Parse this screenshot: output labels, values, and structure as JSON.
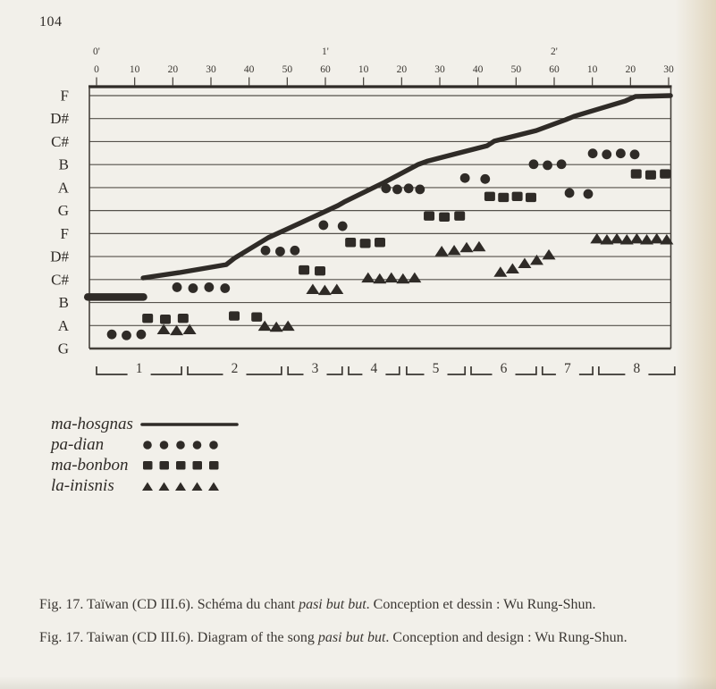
{
  "page": {
    "number": "104"
  },
  "colors": {
    "paper": "#f2f0ea",
    "ink": "#2f2b27",
    "grid": "#45403a",
    "caption_text": "#3b3733"
  },
  "chart_data": {
    "type": "scatter",
    "title": "Diagram of the song pasi but but",
    "x_axis": {
      "range_seconds": [
        0,
        150
      ],
      "minute_marks": [
        {
          "label": "0'",
          "t": 0
        },
        {
          "label": "1'",
          "t": 60
        },
        {
          "label": "2'",
          "t": 120
        }
      ],
      "ticks": [
        {
          "label": "0",
          "t": 0
        },
        {
          "label": "10",
          "t": 10
        },
        {
          "label": "20",
          "t": 20
        },
        {
          "label": "30",
          "t": 30
        },
        {
          "label": "40",
          "t": 40
        },
        {
          "label": "50",
          "t": 50
        },
        {
          "label": "60",
          "t": 60
        },
        {
          "label": "10",
          "t": 70
        },
        {
          "label": "20",
          "t": 80
        },
        {
          "label": "30",
          "t": 90
        },
        {
          "label": "40",
          "t": 100
        },
        {
          "label": "50",
          "t": 110
        },
        {
          "label": "60",
          "t": 120
        },
        {
          "label": "10",
          "t": 130
        },
        {
          "label": "20",
          "t": 140
        },
        {
          "label": "30",
          "t": 150
        }
      ]
    },
    "y_axis": {
      "pitch_lines": [
        "F",
        "D#",
        "C#",
        "B",
        "A",
        "G",
        "F",
        "D#",
        "C#",
        "B",
        "A",
        "G"
      ]
    },
    "series": [
      {
        "name": "ma-hosgnas",
        "type": "line",
        "segments": [
          {
            "stroke_width": 8.5,
            "points": [
              [
                -2.3,
                8.76
              ],
              [
                12.3,
                8.76
              ]
            ]
          },
          {
            "stroke_width": 5.4,
            "points": [
              [
                12.2,
                7.93
              ],
              [
                21.6,
                7.7
              ],
              [
                34.0,
                7.35
              ],
              [
                36.1,
                7.08
              ],
              [
                45.0,
                6.18
              ],
              [
                53.2,
                5.56
              ],
              [
                63.3,
                4.78
              ],
              [
                64.9,
                4.63
              ],
              [
                75.5,
                3.77
              ],
              [
                84.4,
                2.99
              ],
              [
                86.9,
                2.84
              ],
              [
                102.4,
                2.18
              ],
              [
                104.3,
                1.98
              ],
              [
                115.3,
                1.52
              ],
              [
                123.0,
                1.05
              ],
              [
                125.4,
                0.89
              ],
              [
                138.7,
                0.23
              ],
              [
                141.3,
                0.04
              ],
              [
                150.5,
                0.0
              ]
            ]
          }
        ]
      },
      {
        "name": "pa-dian",
        "type": "circle",
        "groups": [
          {
            "t_start": 4.0,
            "t_end": 11.7,
            "count": 3,
            "pitch": 10.4
          },
          {
            "t_start": 21.1,
            "t_end": 33.7,
            "count": 4,
            "pitch": 8.35
          },
          {
            "t_start": 44.3,
            "t_end": 52.0,
            "count": 3,
            "pitch": 6.75
          },
          {
            "t_start": 59.5,
            "t_end": 64.5,
            "count": 2,
            "pitch": 5.65
          },
          {
            "t_start": 75.9,
            "t_end": 84.8,
            "count": 4,
            "pitch": 4.05
          },
          {
            "t_start": 96.6,
            "t_end": 101.9,
            "count": 2,
            "pitch": 3.6
          },
          {
            "t_start": 114.6,
            "t_end": 121.9,
            "count": 3,
            "pitch": 3.0
          },
          {
            "t_start": 124.0,
            "t_end": 128.9,
            "count": 2,
            "pitch": 4.25
          },
          {
            "t_start": 130.1,
            "t_end": 141.1,
            "count": 4,
            "pitch": 2.53
          }
        ]
      },
      {
        "name": "ma-bonbon",
        "type": "square",
        "groups": [
          {
            "t_start": 13.4,
            "t_end": 22.7,
            "count": 3,
            "pitch": 9.7
          },
          {
            "t_start": 36.1,
            "t_end": 42.0,
            "count": 2,
            "pitch": 9.6
          },
          {
            "t_start": 54.4,
            "t_end": 58.6,
            "count": 2,
            "pitch": 7.6
          },
          {
            "t_start": 66.6,
            "t_end": 74.3,
            "count": 3,
            "pitch": 6.4
          },
          {
            "t_start": 87.2,
            "t_end": 95.2,
            "count": 3,
            "pitch": 5.25
          },
          {
            "t_start": 103.1,
            "t_end": 113.9,
            "count": 4,
            "pitch": 4.4
          },
          {
            "t_start": 141.5,
            "t_end": 149.1,
            "count": 3,
            "pitch": 3.42
          }
        ]
      },
      {
        "name": "la-inisnis",
        "type": "triangle",
        "groups": [
          {
            "t_start": 17.6,
            "t_end": 24.4,
            "count": 3,
            "pitch": 10.2
          },
          {
            "t_start": 44.1,
            "t_end": 50.2,
            "count": 3,
            "pitch": 10.05
          },
          {
            "t_start": 56.7,
            "t_end": 63.0,
            "count": 3,
            "pitch": 8.45
          },
          {
            "t_start": 71.2,
            "t_end": 83.4,
            "count": 5,
            "pitch": 7.95
          },
          {
            "t_start": 90.5,
            "t_end": 100.3,
            "count": 4,
            "pitch": 6.8,
            "pitch_end": 6.55
          },
          {
            "t_start": 105.9,
            "t_end": 118.6,
            "count": 5,
            "pitch": 7.7,
            "pitch_end": 6.95
          },
          {
            "t_start": 131.2,
            "t_end": 149.5,
            "count": 8,
            "pitch": 6.25
          }
        ]
      }
    ],
    "sections": [
      {
        "label": "1",
        "t_start": 0.0,
        "t_end": 22.3
      },
      {
        "label": "2",
        "t_start": 23.9,
        "t_end": 48.5
      },
      {
        "label": "3",
        "t_start": 50.2,
        "t_end": 64.4
      },
      {
        "label": "4",
        "t_start": 66.1,
        "t_end": 79.4
      },
      {
        "label": "5",
        "t_start": 81.3,
        "t_end": 96.6
      },
      {
        "label": "6",
        "t_start": 98.2,
        "t_end": 115.3
      },
      {
        "label": "7",
        "t_start": 116.9,
        "t_end": 130.1
      },
      {
        "label": "8",
        "t_start": 131.7,
        "t_end": 151.6
      }
    ],
    "legend": [
      {
        "label": "ma-hosgnas",
        "marker": "line"
      },
      {
        "label": "pa-dian",
        "marker": "circle"
      },
      {
        "label": "ma-bonbon",
        "marker": "square"
      },
      {
        "label": "la-inisnis",
        "marker": "triangle"
      }
    ],
    "legend_swatch_count": 5
  },
  "captions": {
    "french": {
      "prefix": "Fig. 17. Taïwan (CD III.6). Schéma du chant ",
      "italic": "pasi but but",
      "suffix": ". Conception et dessin : Wu Rung-Shun."
    },
    "english": {
      "prefix": "Fig. 17. Taiwan (CD III.6). Diagram of the song ",
      "italic": "pasi but but",
      "suffix": ". Conception and design : Wu Rung-Shun."
    }
  }
}
